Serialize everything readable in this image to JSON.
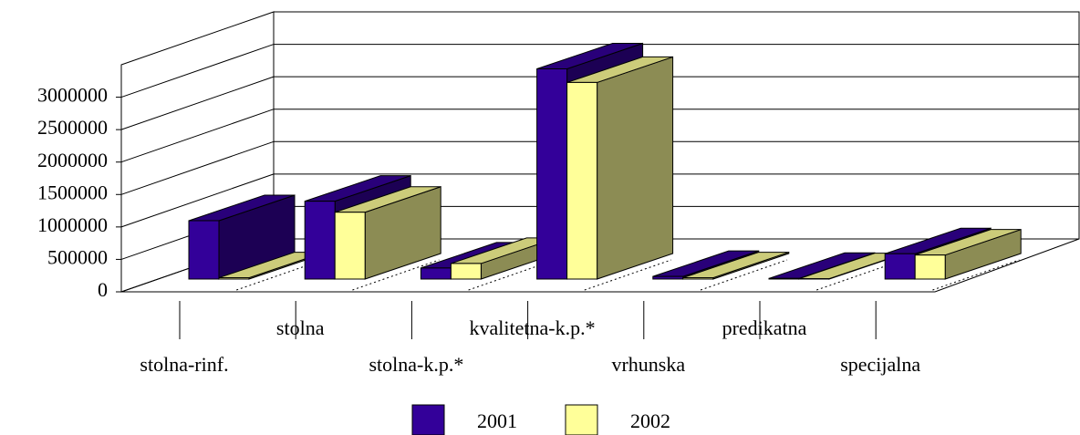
{
  "chart_data": {
    "type": "bar3d",
    "categories": [
      "stolna-rinf.",
      "stolna",
      "stolna-k.p.*",
      "kvalitetna-k.p.*",
      "vrhunska",
      "predikatna",
      "specijalna"
    ],
    "series": [
      {
        "name": "2001",
        "color": "#330099",
        "values": [
          900000,
          1200000,
          170000,
          3240000,
          40000,
          10000,
          390000
        ]
      },
      {
        "name": "2002",
        "color": "#ffff99",
        "values": [
          20000,
          1030000,
          240000,
          3030000,
          20000,
          5000,
          370000
        ]
      }
    ],
    "ylim": [
      0,
      3500000
    ],
    "yticks": [
      0,
      500000,
      1000000,
      1500000,
      2000000,
      2500000,
      3000000
    ],
    "grid": true,
    "legend": "bottom"
  }
}
